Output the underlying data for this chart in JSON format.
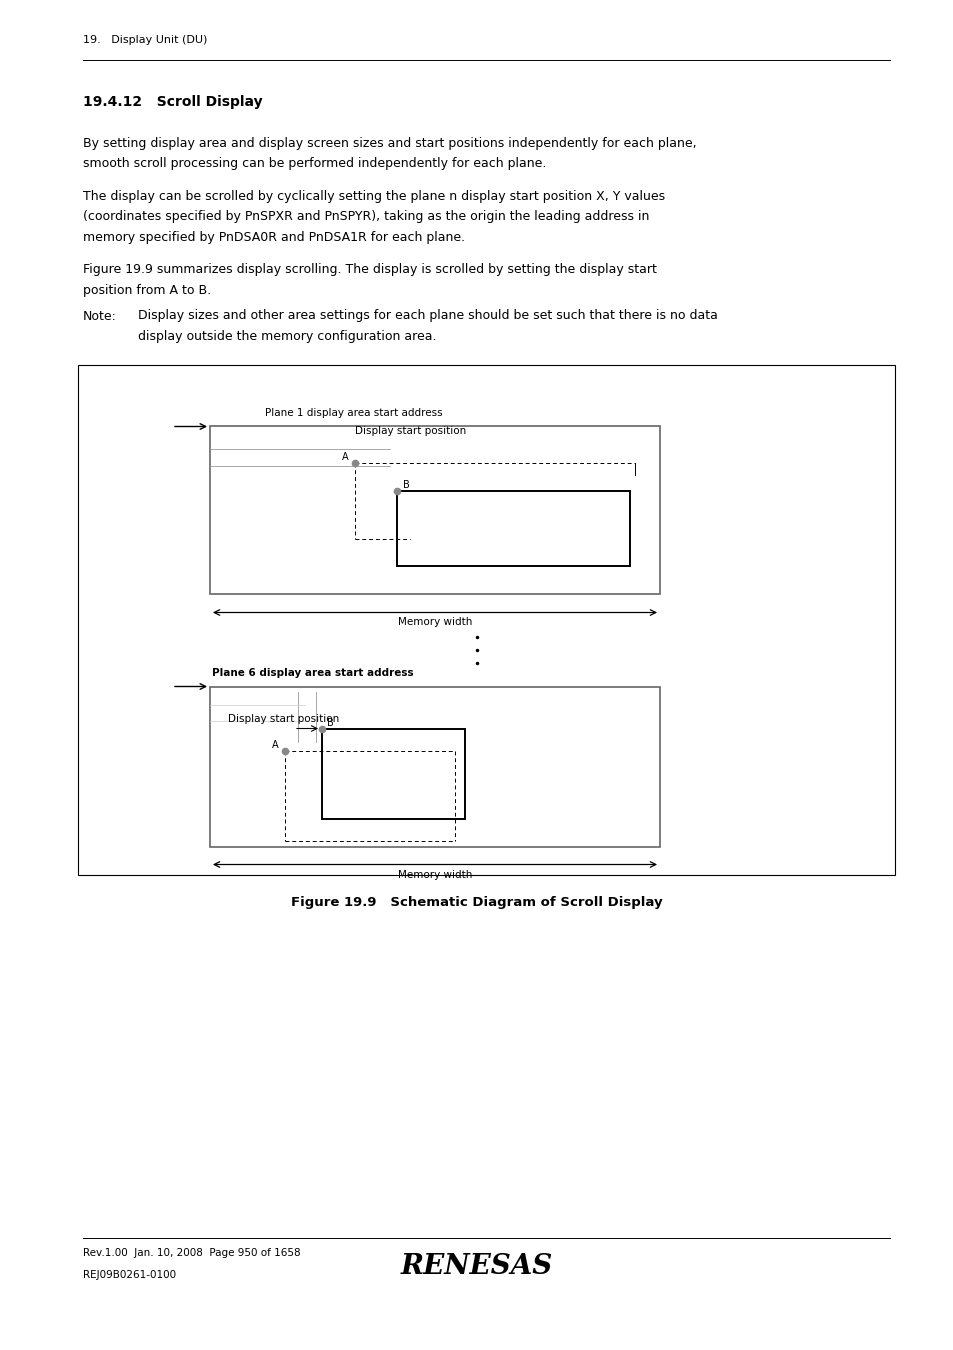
{
  "bg_color": "#ffffff",
  "page_width": 9.54,
  "page_height": 13.5,
  "header_text": "19.   Display Unit (DU)",
  "section_title": "19.4.12   Scroll Display",
  "para1": "By setting display area and display screen sizes and start positions independently for each plane,\nsmooth scroll processing can be performed independently for each plane.",
  "para2": "The display can be scrolled by cyclically setting the plane n display start position X, Y values\n(coordinates specified by PnSPXR and PnSPYR), taking as the origin the leading address in\nmemory specified by PnDSA0R and PnDSA1R for each plane.",
  "para3": "Figure 19.9 summarizes display scrolling. The display is scrolled by setting the display start\nposition from A to B.",
  "note_label": "Note:",
  "note_text": "Display sizes and other area settings for each plane should be set such that there is no data\ndisplay outside the memory configuration area.",
  "figure_caption": "Figure 19.9   Schematic Diagram of Scroll Display",
  "footer_line1": "Rev.1.00  Jan. 10, 2008  Page 950 of 1658",
  "footer_line2": "REJ09B0261-0100"
}
